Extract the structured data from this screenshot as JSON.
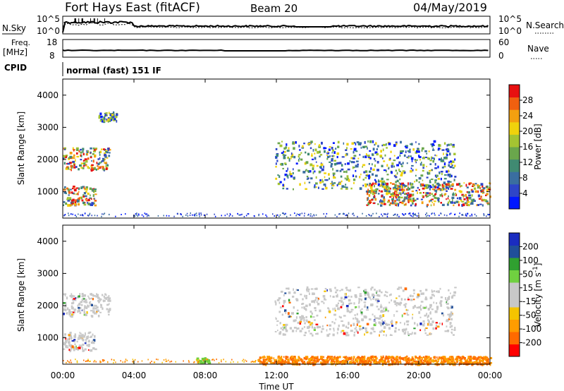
{
  "header": {
    "station": "Fort Hays East (fitACF)",
    "beam": "Beam 20",
    "date": "04/May/2019"
  },
  "noise_panel": {
    "left_label": "N.Sky",
    "right_label": "N.Search",
    "left_ticks": [
      "10^5",
      "10^0"
    ],
    "right_ticks": [
      "10^5",
      "10^0"
    ]
  },
  "freq_panel": {
    "left_label_1": "Freq.",
    "left_label_2": "[MHz]",
    "right_label": "Nave",
    "left_ticks": [
      "18",
      "8"
    ],
    "right_ticks": [
      "60",
      "0"
    ]
  },
  "cpid": {
    "label": "CPID",
    "mode_text": "normal (fast) 151 IF"
  },
  "colors": {
    "power_scale": [
      "#0018ff",
      "#2e45c8",
      "#3a6ea0",
      "#408a72",
      "#6aa64c",
      "#a4c432",
      "#f0d20c",
      "#f3a010",
      "#f06010",
      "#e81010"
    ],
    "velocity_scale": [
      "#ff0000",
      "#ff6a00",
      "#ff9c00",
      "#f5c400",
      "#c8c8c8",
      "#c8c8c8",
      "#70d040",
      "#30a030",
      "#204e9a",
      "#1a2cc0"
    ],
    "accent_red": "#e01010"
  },
  "chart_data": [
    {
      "type": "heatmap",
      "title": "",
      "xlabel": "",
      "ylabel": "Slant Range [km]",
      "x_range": [
        "00:00",
        "24:00"
      ],
      "ylim": [
        180,
        4500
      ],
      "ytick_labels": [
        "1000",
        "2000",
        "3000",
        "4000"
      ],
      "ytick_values": [
        1000,
        2000,
        3000,
        4000
      ],
      "colorbar": {
        "label": "Power [dB]",
        "range": [
          0,
          32
        ],
        "tick_labels": [
          "4",
          "8",
          "12",
          "16",
          "20",
          "24",
          "28"
        ]
      },
      "echo_regions": [
        {
          "t_start": 0.0,
          "t_end": 2.6,
          "range_km": [
            1700,
            2400
          ],
          "level": "12-28"
        },
        {
          "t_start": 0.0,
          "t_end": 1.8,
          "range_km": [
            600,
            1200
          ],
          "level": "16-28"
        },
        {
          "t_start": 2.0,
          "t_end": 3.0,
          "range_km": [
            3200,
            3500
          ],
          "level": "4-12"
        },
        {
          "t_start": 11.9,
          "t_end": 22.0,
          "range_km": [
            1100,
            2600
          ],
          "level": "8-24"
        },
        {
          "t_start": 17.0,
          "t_end": 24.0,
          "range_km": [
            600,
            1300
          ],
          "level": "12-28"
        }
      ]
    },
    {
      "type": "heatmap",
      "title": "",
      "xlabel": "Time UT",
      "ylabel": "Slant Range [km]",
      "x_range": [
        "00:00",
        "24:00"
      ],
      "xtick_labels": [
        "00:00",
        "04:00",
        "08:00",
        "12:00",
        "16:00",
        "20:00",
        "00:00"
      ],
      "ylim": [
        180,
        4500
      ],
      "ytick_labels": [
        "1000",
        "2000",
        "3000",
        "4000"
      ],
      "ytick_values": [
        1000,
        2000,
        3000,
        4000
      ],
      "colorbar": {
        "label": "Velocity [m s",
        "label_superscript": "-1",
        "label_close": "]",
        "tick_labels": [
          "200",
          "100",
          "50",
          "15",
          "-15",
          "-50",
          "-100",
          "-200"
        ]
      },
      "echo_regions": [
        {
          "t_start": 0.0,
          "t_end": 2.6,
          "range_km": [
            1700,
            2400
          ],
          "velocity": "-15 to 15"
        },
        {
          "t_start": 0.0,
          "t_end": 1.8,
          "range_km": [
            600,
            1200
          ],
          "velocity": "-15 to 15"
        },
        {
          "t_start": 7.5,
          "t_end": 8.2,
          "range_km": [
            250,
            400
          ],
          "velocity": "15 to 50"
        },
        {
          "t_start": 11.9,
          "t_end": 22.0,
          "range_km": [
            1100,
            2600
          ],
          "velocity": "-15 to 15"
        },
        {
          "t_start": 11.0,
          "t_end": 24.0,
          "range_km": [
            200,
            450
          ],
          "velocity": "-50 to -100"
        }
      ]
    }
  ]
}
